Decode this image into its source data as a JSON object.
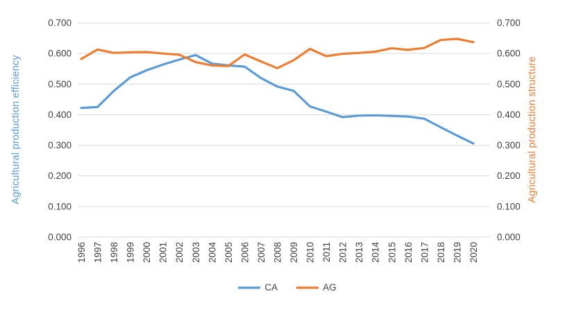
{
  "chart_data": {
    "type": "line",
    "categories": [
      "1996",
      "1997",
      "1998",
      "1999",
      "2000",
      "2001",
      "2002",
      "2003",
      "2004",
      "2005",
      "2006",
      "2007",
      "2008",
      "2009",
      "2010",
      "2011",
      "2012",
      "2013",
      "2014",
      "2015",
      "2016",
      "2017",
      "2018",
      "2019",
      "2020"
    ],
    "series": [
      {
        "name": "CA",
        "color": "#5B9BD5",
        "axis": "left",
        "values": [
          0.422,
          0.425,
          0.478,
          0.522,
          0.545,
          0.564,
          0.58,
          0.595,
          0.567,
          0.561,
          0.557,
          0.52,
          0.492,
          0.478,
          0.427,
          0.41,
          0.392,
          0.397,
          0.398,
          0.396,
          0.394,
          0.387,
          0.359,
          0.332,
          0.306
        ]
      },
      {
        "name": "AG",
        "color": "#ED7D31",
        "axis": "right",
        "values": [
          0.582,
          0.613,
          0.602,
          0.604,
          0.605,
          0.6,
          0.596,
          0.572,
          0.561,
          0.559,
          0.597,
          0.574,
          0.552,
          0.578,
          0.615,
          0.591,
          0.599,
          0.602,
          0.606,
          0.617,
          0.612,
          0.618,
          0.644,
          0.648,
          0.637
        ]
      }
    ],
    "left_axis": {
      "title": "Agricultural production efficiency",
      "color": "#5B9BD5",
      "ticks": [
        "0.700",
        "0.600",
        "0.500",
        "0.400",
        "0.300",
        "0.200",
        "0.100",
        "0.000"
      ],
      "min": 0.0,
      "max": 0.7
    },
    "right_axis": {
      "title": "Agricultural production structure",
      "color": "#ED7D31",
      "ticks": [
        "0.700",
        "0.600",
        "0.500",
        "0.400",
        "0.300",
        "0.200",
        "0.100",
        "0.000"
      ],
      "min": 0.0,
      "max": 0.7
    },
    "grid": true,
    "gridline_color": "#D9D9D9",
    "legend_position": "bottom"
  }
}
